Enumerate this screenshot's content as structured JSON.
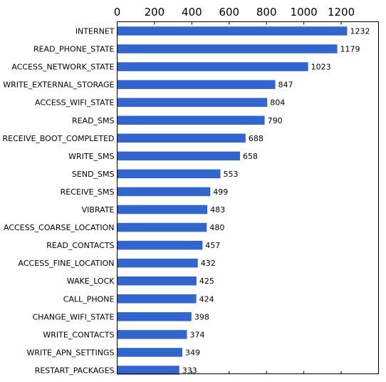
{
  "chart_data": {
    "type": "bar",
    "orientation": "horizontal",
    "x_axis_position": "top",
    "xlim": [
      0,
      1400
    ],
    "x_ticks": [
      0,
      200,
      400,
      600,
      800,
      1000,
      1200
    ],
    "grid": false,
    "bar_color": "#3366cc",
    "categories": [
      "INTERNET",
      "READ_PHONE_STATE",
      "ACCESS_NETWORK_STATE",
      "WRITE_EXTERNAL_STORAGE",
      "ACCESS_WIFI_STATE",
      "READ_SMS",
      "RECEIVE_BOOT_COMPLETED",
      "WRITE_SMS",
      "SEND_SMS",
      "RECEIVE_SMS",
      "VIBRATE",
      "ACCESS_COARSE_LOCATION",
      "READ_CONTACTS",
      "ACCESS_FINE_LOCATION",
      "WAKE_LOCK",
      "CALL_PHONE",
      "CHANGE_WIFI_STATE",
      "WRITE_CONTACTS",
      "WRITE_APN_SETTINGS",
      "RESTART_PACKAGES"
    ],
    "values": [
      1232,
      1179,
      1023,
      847,
      804,
      790,
      688,
      658,
      553,
      499,
      483,
      480,
      457,
      432,
      425,
      424,
      398,
      374,
      349,
      333
    ],
    "value_labels": [
      "1232",
      "1179",
      "1023",
      "847",
      "804",
      "790",
      "688",
      "658",
      "553",
      "499",
      "483",
      "480",
      "457",
      "432",
      "425",
      "424",
      "398",
      "374",
      "349",
      "333"
    ]
  }
}
